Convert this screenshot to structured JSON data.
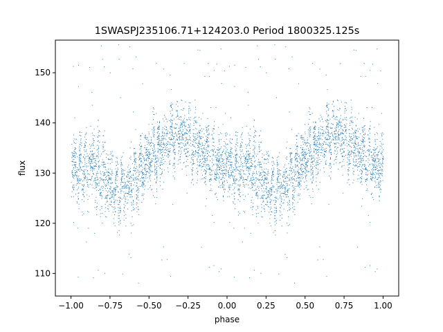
{
  "chart_data": {
    "type": "scatter",
    "title": "1SWASPJ235106.71+124203.0 Period 1800325.125s",
    "xlabel": "phase",
    "ylabel": "flux",
    "xlim": [
      -1.1,
      1.1
    ],
    "ylim": [
      105.5,
      156.5
    ],
    "xticks": [
      -1.0,
      -0.75,
      -0.5,
      -0.25,
      0.0,
      0.25,
      0.5,
      0.75,
      1.0
    ],
    "xtick_labels": [
      "−1.00",
      "−0.75",
      "−0.50",
      "−0.25",
      "0.00",
      "0.25",
      "0.50",
      "0.75",
      "1.00"
    ],
    "yticks": [
      110,
      120,
      130,
      140,
      150
    ],
    "ytick_labels": [
      "110",
      "120",
      "130",
      "140",
      "150"
    ],
    "grid": false,
    "point_color": "#1f77b4",
    "profile": {
      "phase": [
        0.0,
        0.05,
        0.1,
        0.15,
        0.2,
        0.25,
        0.3,
        0.35,
        0.4,
        0.45,
        0.5,
        0.55,
        0.6,
        0.65,
        0.7,
        0.75,
        0.8,
        0.85,
        0.9,
        0.95,
        1.0
      ],
      "flux_center": [
        131,
        130,
        131,
        132,
        130,
        128,
        126,
        127,
        129,
        131,
        133,
        134,
        136,
        137,
        138,
        137,
        136,
        134,
        133,
        132,
        131
      ],
      "flux_spread": [
        5,
        5,
        5,
        6,
        6,
        5,
        4,
        4,
        5,
        5,
        5,
        4,
        4,
        5,
        5,
        5,
        5,
        5,
        5,
        5,
        5
      ]
    },
    "outlier_range": [
      108,
      156
    ],
    "symmetric_copy": true
  }
}
